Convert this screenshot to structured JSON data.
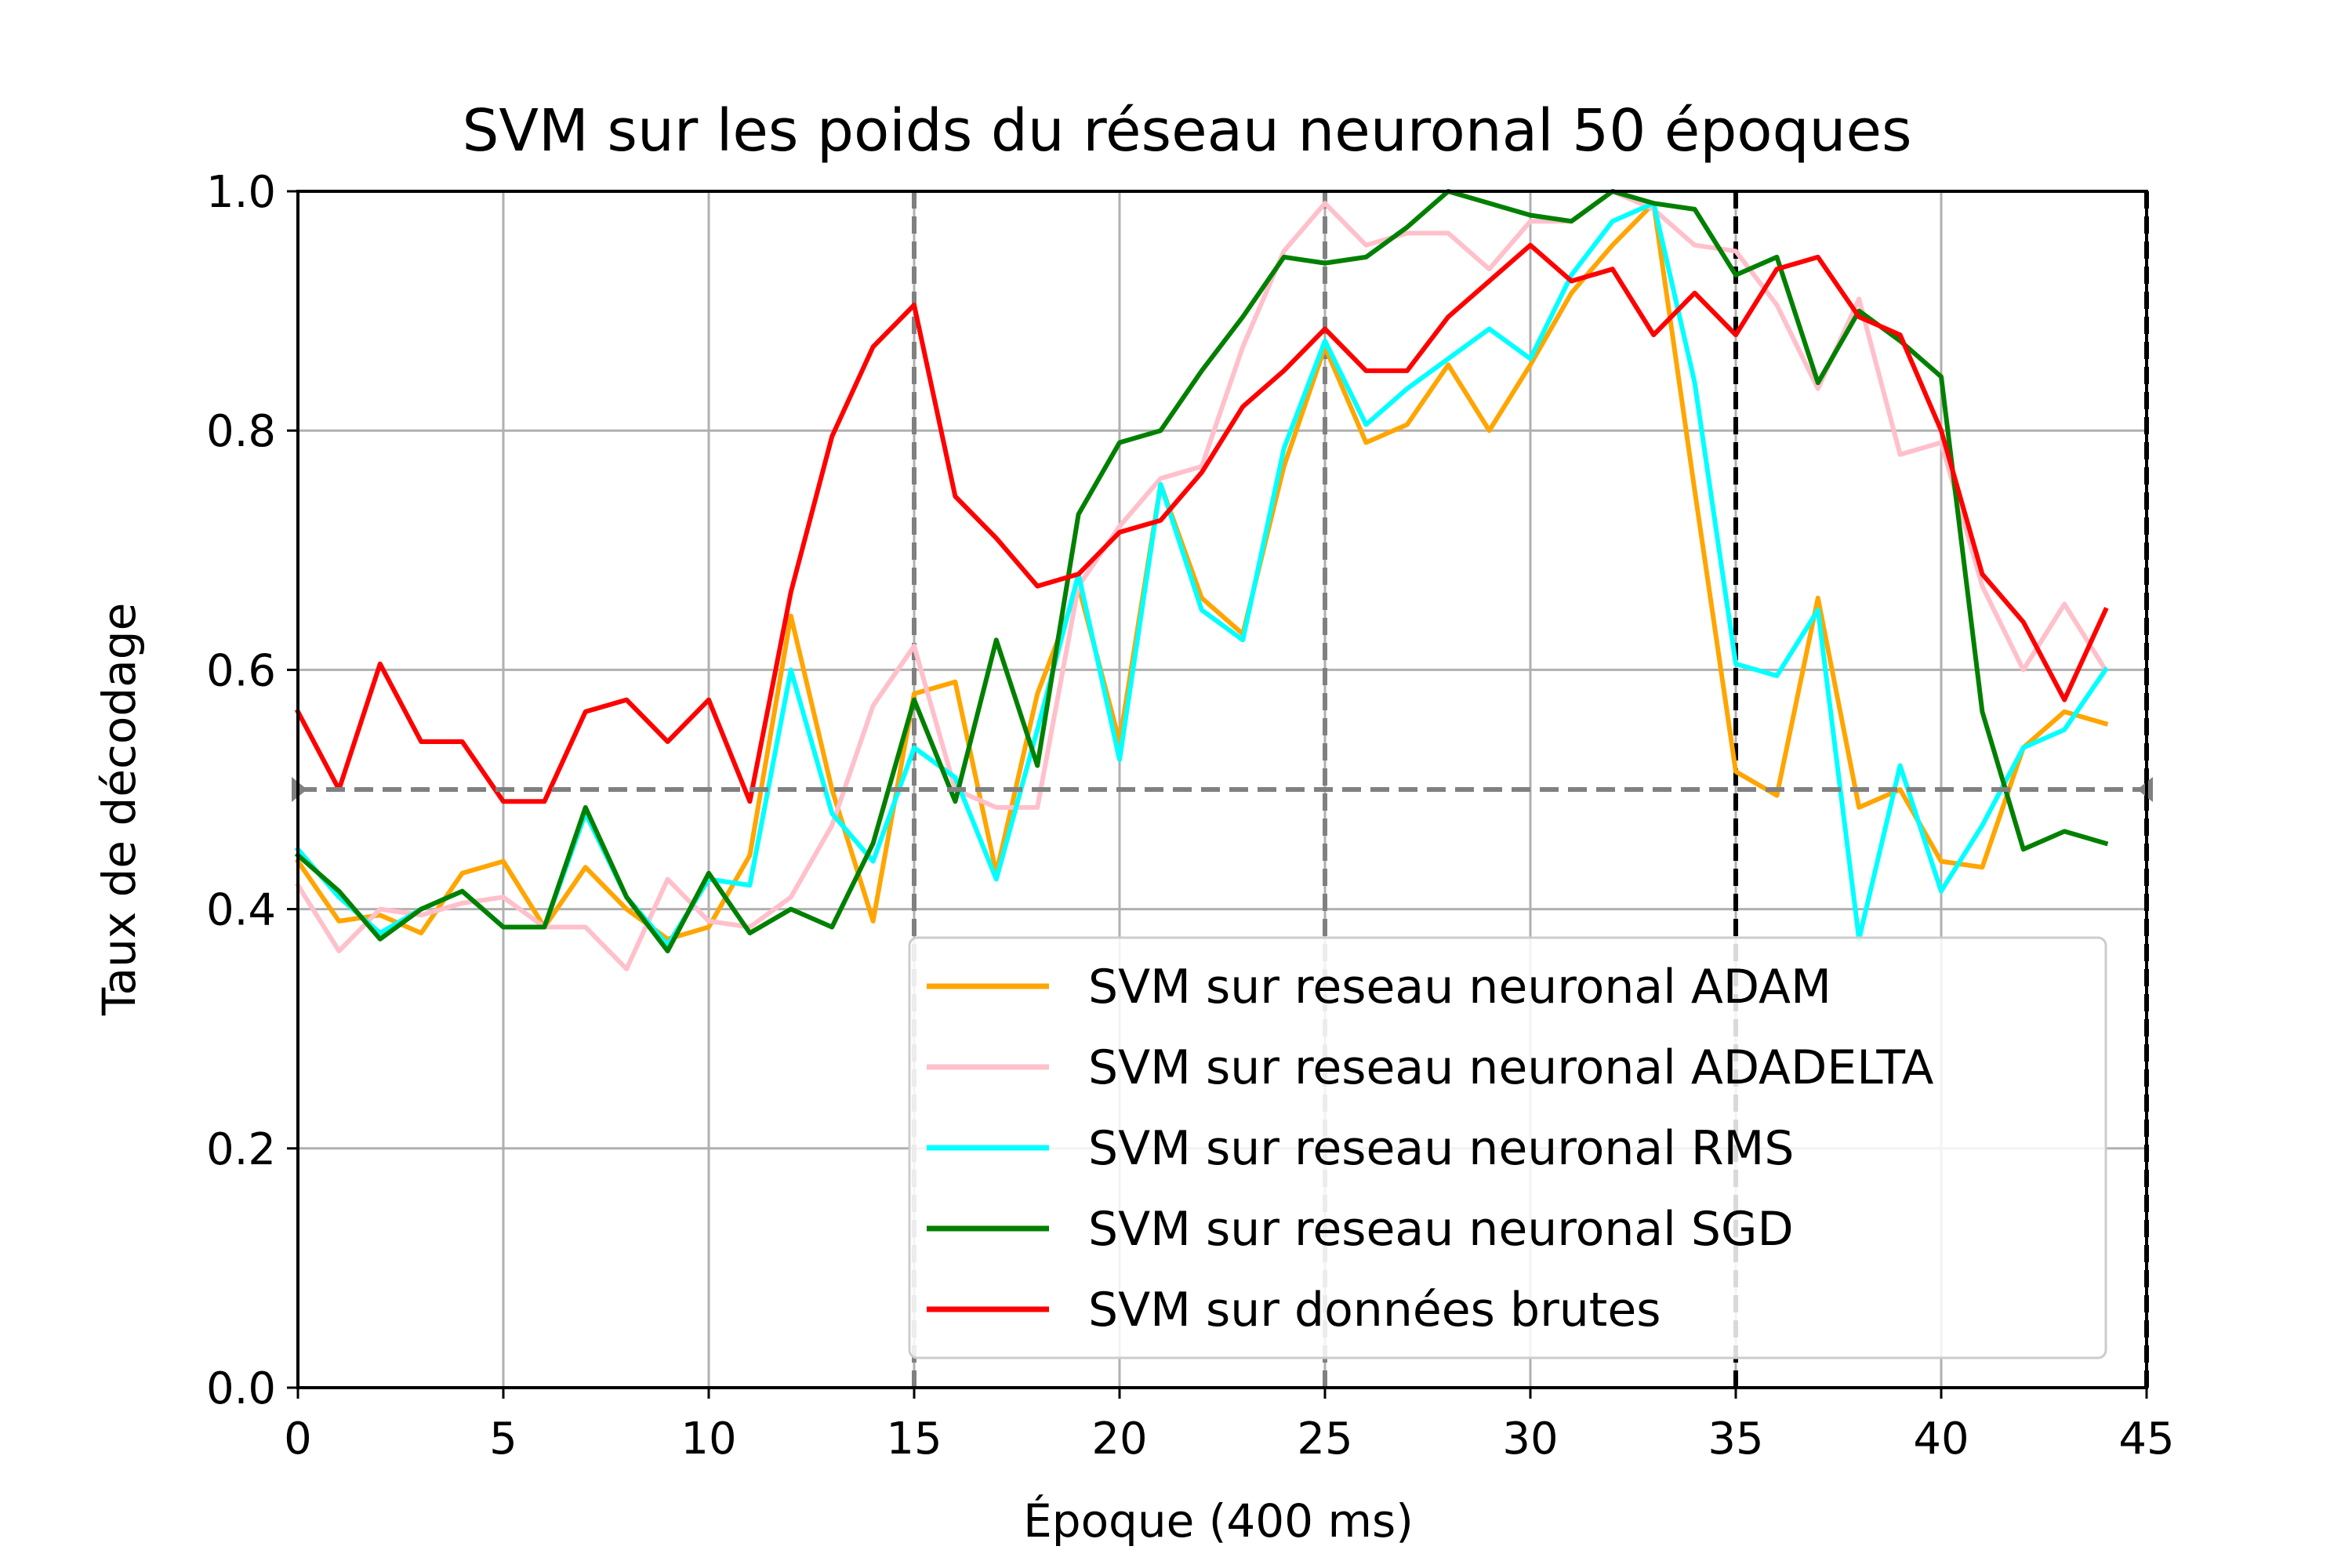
{
  "chart_data": {
    "type": "line",
    "title": "SVM sur les poids du réseau neuronal 50 époques",
    "xlabel": "Époque (400 ms)",
    "ylabel": "Taux de décodage",
    "xlim": [
      0,
      45
    ],
    "ylim": [
      0,
      1.0
    ],
    "x_ticks": [
      "0",
      "5",
      "10",
      "15",
      "20",
      "25",
      "30",
      "35",
      "40",
      "45"
    ],
    "y_ticks": [
      "0.0",
      "0.2",
      "0.4",
      "0.6",
      "0.8",
      "1.0"
    ],
    "grid": true,
    "legend_position": "lower-right",
    "chance_level": 0.5,
    "vertical_markers": [
      {
        "x": 15,
        "color": "#808080"
      },
      {
        "x": 25,
        "color": "#808080"
      },
      {
        "x": 35,
        "color": "#000000"
      },
      {
        "x": 45,
        "color": "#000000"
      }
    ],
    "x": [
      0,
      1,
      2,
      3,
      4,
      5,
      6,
      7,
      8,
      9,
      10,
      11,
      12,
      13,
      14,
      15,
      16,
      17,
      18,
      19,
      20,
      21,
      22,
      23,
      24,
      25,
      26,
      27,
      28,
      29,
      30,
      31,
      32,
      33,
      34,
      35,
      36,
      37,
      38,
      39,
      40,
      41,
      42,
      43,
      44
    ],
    "series": [
      {
        "name": "SVM sur reseau neuronal ADAM",
        "color": "#FFA500",
        "values": [
          0.44,
          0.39,
          0.395,
          0.38,
          0.43,
          0.44,
          0.385,
          0.435,
          0.4,
          0.375,
          0.385,
          0.445,
          0.645,
          0.5,
          0.39,
          0.58,
          0.59,
          0.43,
          0.58,
          0.67,
          0.54,
          0.755,
          0.66,
          0.63,
          0.77,
          0.87,
          0.79,
          0.805,
          0.855,
          0.8,
          0.855,
          0.915,
          0.955,
          0.99,
          0.75,
          0.515,
          0.495,
          0.66,
          0.485,
          0.5,
          0.44,
          0.435,
          0.535,
          0.565,
          0.555
        ]
      },
      {
        "name": "SVM sur reseau neuronal ADADELTA",
        "color": "#FFC0CB",
        "values": [
          0.42,
          0.365,
          0.4,
          0.395,
          0.405,
          0.41,
          0.385,
          0.385,
          0.35,
          0.425,
          0.39,
          0.385,
          0.41,
          0.47,
          0.57,
          0.62,
          0.5,
          0.485,
          0.485,
          0.67,
          0.72,
          0.76,
          0.77,
          0.87,
          0.95,
          0.99,
          0.955,
          0.965,
          0.965,
          0.935,
          0.975,
          0.975,
          1.0,
          0.985,
          0.955,
          0.95,
          0.905,
          0.835,
          0.91,
          0.78,
          0.79,
          0.67,
          0.6,
          0.655,
          0.6
        ]
      },
      {
        "name": "SVM sur reseau neuronal RMS",
        "color": "#00FFFF",
        "values": [
          0.45,
          0.41,
          0.38,
          0.4,
          0.415,
          0.385,
          0.385,
          0.48,
          0.41,
          0.37,
          0.425,
          0.42,
          0.6,
          0.48,
          0.44,
          0.535,
          0.51,
          0.425,
          0.55,
          0.68,
          0.525,
          0.755,
          0.65,
          0.625,
          0.785,
          0.875,
          0.805,
          0.835,
          0.86,
          0.885,
          0.86,
          0.93,
          0.975,
          0.99,
          0.84,
          0.605,
          0.595,
          0.65,
          0.375,
          0.52,
          0.415,
          0.47,
          0.535,
          0.55,
          0.6
        ]
      },
      {
        "name": "SVM sur reseau neuronal SGD",
        "color": "#008000",
        "values": [
          0.445,
          0.415,
          0.375,
          0.4,
          0.415,
          0.385,
          0.385,
          0.485,
          0.41,
          0.365,
          0.43,
          0.38,
          0.4,
          0.385,
          0.455,
          0.575,
          0.49,
          0.625,
          0.52,
          0.73,
          0.79,
          0.8,
          0.85,
          0.895,
          0.945,
          0.94,
          0.945,
          0.97,
          1.0,
          0.99,
          0.98,
          0.975,
          1.0,
          0.99,
          0.985,
          0.93,
          0.945,
          0.84,
          0.9,
          0.875,
          0.845,
          0.565,
          0.45,
          0.465,
          0.455
        ]
      },
      {
        "name": "SVM sur données brutes",
        "color": "#FF0000",
        "values": [
          0.565,
          0.5,
          0.605,
          0.54,
          0.54,
          0.49,
          0.49,
          0.565,
          0.575,
          0.54,
          0.575,
          0.49,
          0.665,
          0.795,
          0.87,
          0.905,
          0.745,
          0.71,
          0.67,
          0.68,
          0.715,
          0.725,
          0.765,
          0.82,
          0.85,
          0.885,
          0.85,
          0.85,
          0.895,
          0.925,
          0.955,
          0.925,
          0.935,
          0.88,
          0.915,
          0.88,
          0.935,
          0.945,
          0.895,
          0.88,
          0.8,
          0.68,
          0.64,
          0.575,
          0.65
        ]
      }
    ]
  }
}
